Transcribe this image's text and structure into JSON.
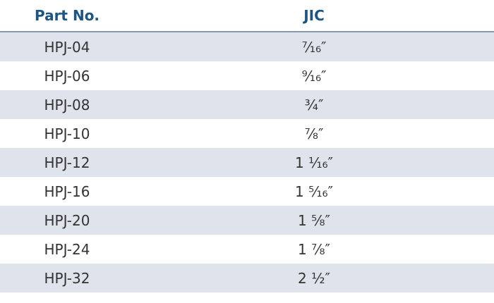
{
  "table": {
    "header": [
      "Part No.",
      "JIC"
    ],
    "rows": [
      [
        "HPJ-04",
        "⁷⁄₁₆″"
      ],
      [
        "HPJ-06",
        "⁹⁄₁₆″"
      ],
      [
        "HPJ-08",
        "³⁄₄″"
      ],
      [
        "HPJ-10",
        "⁷⁄₈″"
      ],
      [
        "HPJ-12",
        "1 ¹⁄₁₆″"
      ],
      [
        "HPJ-16",
        "1 ⁵⁄₁₆″"
      ],
      [
        "HPJ-20",
        "1 ⁵⁄₈″"
      ],
      [
        "HPJ-24",
        "1 ⁷⁄₈″"
      ],
      [
        "HPJ-32",
        "2 ¹⁄₂″"
      ]
    ]
  }
}
